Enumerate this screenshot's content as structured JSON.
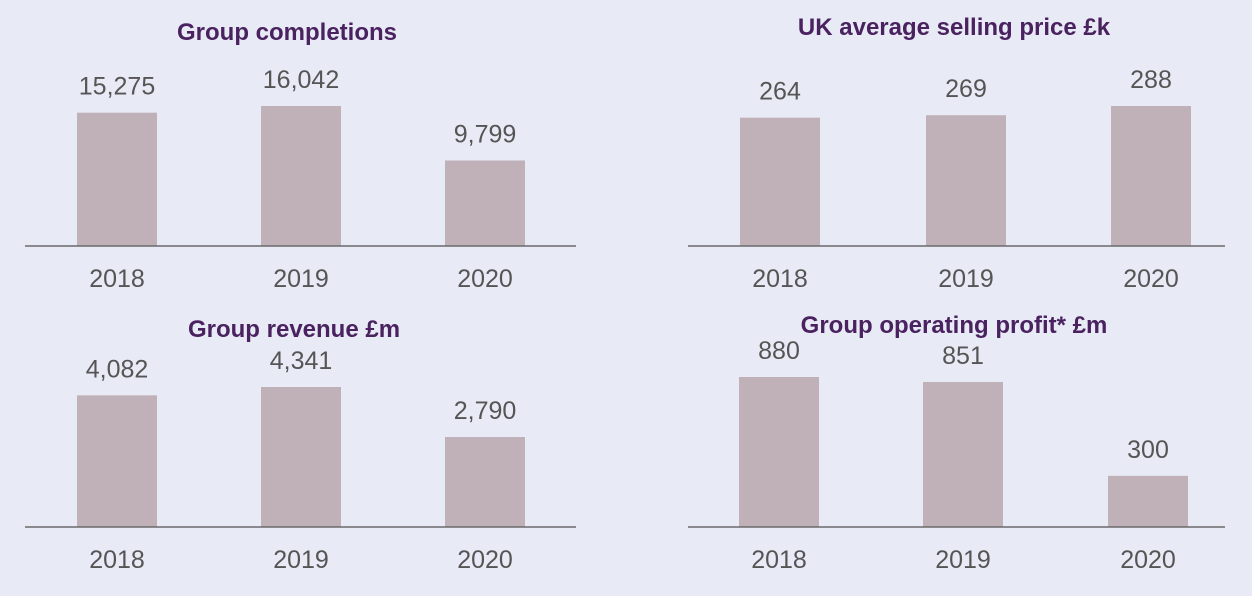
{
  "colors": {
    "background": "#e8ebf6",
    "bar": "#bfb1b7",
    "axis": "#6b6b6b",
    "title": "#4a2260",
    "text": "#555555"
  },
  "chart_data": [
    {
      "type": "bar",
      "title": "Group completions",
      "categories": [
        "2018",
        "2019",
        "2020"
      ],
      "values": [
        15275,
        16042,
        9799
      ],
      "value_labels": [
        "15,275",
        "16,042",
        "9,799"
      ],
      "ylim": [
        0,
        17500
      ],
      "grid": false,
      "legend": "none"
    },
    {
      "type": "bar",
      "title": "UK average selling price £k",
      "categories": [
        "2018",
        "2019",
        "2020"
      ],
      "values": [
        264,
        269,
        288
      ],
      "value_labels": [
        "264",
        "269",
        "288"
      ],
      "ylim": [
        0,
        320
      ],
      "grid": false,
      "legend": "none"
    },
    {
      "type": "bar",
      "title": "Group revenue £m",
      "categories": [
        "2018",
        "2019",
        "2020"
      ],
      "values": [
        4082,
        4341,
        2790
      ],
      "value_labels": [
        "4,082",
        "4,341",
        "2,790"
      ],
      "ylim": [
        0,
        4750
      ],
      "grid": false,
      "legend": "none"
    },
    {
      "type": "bar",
      "title": "Group operating profit* £m",
      "categories": [
        "2018",
        "2019",
        "2020"
      ],
      "values": [
        880,
        851,
        300
      ],
      "value_labels": [
        "880",
        "851",
        "300"
      ],
      "ylim": [
        0,
        1020
      ],
      "grid": false,
      "legend": "none"
    }
  ]
}
